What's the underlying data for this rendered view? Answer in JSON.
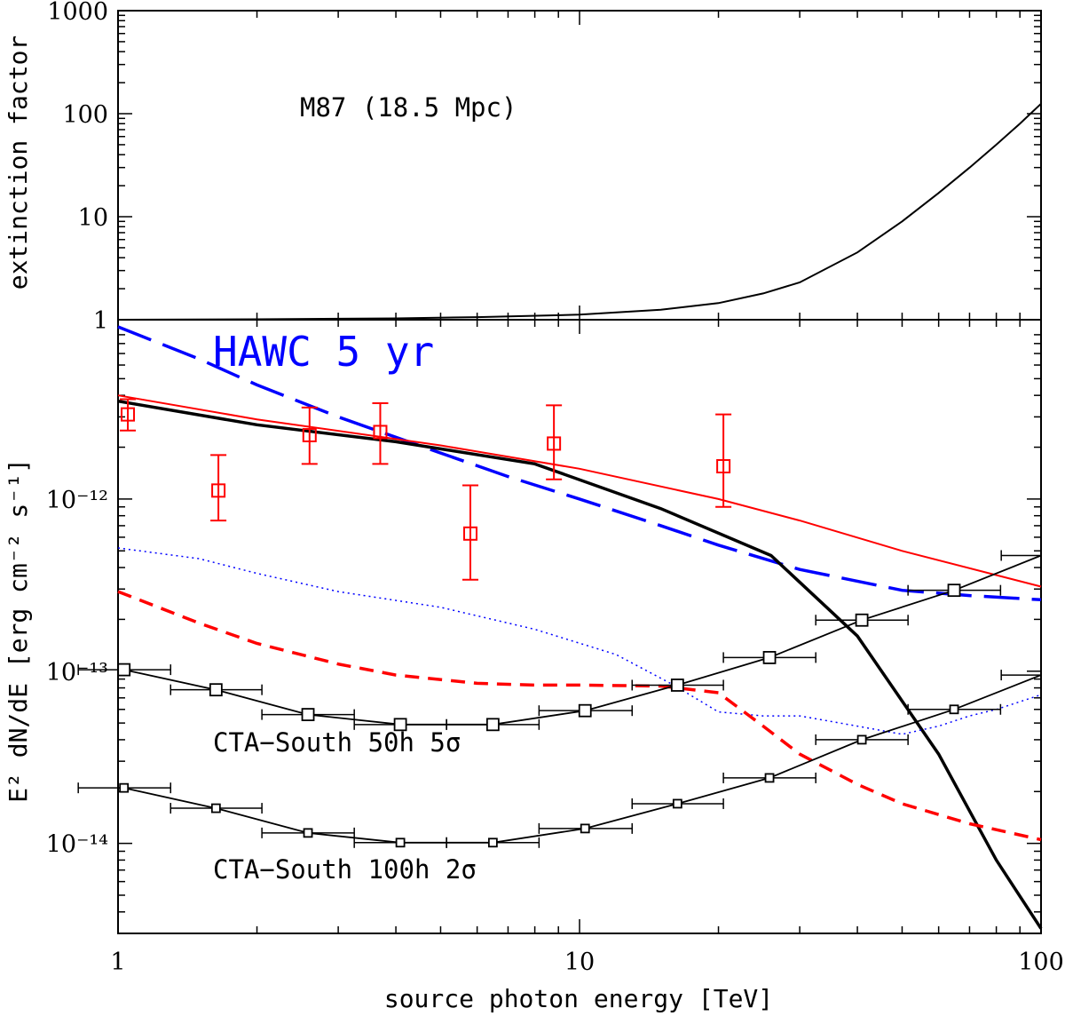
{
  "chart_data": [
    {
      "type": "line",
      "panel": "top",
      "ylabel": "extinction factor",
      "xlim": [
        1,
        100
      ],
      "ylim": [
        1,
        1000
      ],
      "yscale": "log",
      "xscale": "log",
      "yticks": [
        "1",
        "10",
        "100",
        "1000"
      ],
      "annotation": "M87 (18.5 Mpc)",
      "series": [
        {
          "name": "extinction",
          "color": "#000000",
          "x": [
            1,
            2,
            4,
            6,
            10,
            15,
            20,
            25,
            30,
            40,
            50,
            60,
            70,
            80,
            90,
            100
          ],
          "y": [
            1.0,
            1.01,
            1.03,
            1.06,
            1.12,
            1.25,
            1.45,
            1.8,
            2.3,
            4.5,
            9,
            17,
            30,
            50,
            80,
            125
          ]
        }
      ]
    },
    {
      "type": "line",
      "panel": "bottom",
      "xlabel": "source photon energy [TeV]",
      "ylabel": "E² dN/dE  [erg cm⁻² s⁻¹]",
      "xlim": [
        1,
        100
      ],
      "ylim": [
        3e-15,
        1.1e-11
      ],
      "xscale": "log",
      "yscale": "log",
      "xticks": [
        "1",
        "10",
        "100"
      ],
      "yticks": [
        "10⁻¹²",
        "10⁻¹³",
        "10⁻¹⁴"
      ],
      "annotations": [
        "HAWC 5 yr",
        "CTA−South 50h 5σ",
        "CTA−South 100h 2σ"
      ],
      "series": [
        {
          "name": "HAWC 5 yr sensitivity",
          "style": "long-dash",
          "color": "#0000ff",
          "x": [
            1,
            1.5,
            2,
            3,
            5,
            7,
            10,
            15,
            20,
            30,
            50,
            70,
            100
          ],
          "y": [
            1e-11,
            6.5e-12,
            4.6e-12,
            3e-12,
            1.85e-12,
            1.35e-12,
            1e-12,
            7e-13,
            5.4e-13,
            3.9e-13,
            2.95e-13,
            2.75e-13,
            2.6e-13
          ]
        },
        {
          "name": "red thin model",
          "style": "solid-thin",
          "color": "#ff0000",
          "x": [
            1,
            2,
            5,
            10,
            20,
            30,
            50,
            100
          ],
          "y": [
            4e-12,
            2.9e-12,
            2.05e-12,
            1.5e-12,
            1e-12,
            7.5e-13,
            5e-13,
            3.1e-13
          ]
        },
        {
          "name": "black thick model",
          "style": "solid-thick",
          "color": "#000000",
          "x": [
            1,
            2,
            4,
            8,
            15,
            26,
            40,
            60,
            80,
            100
          ],
          "y": [
            3.7e-12,
            2.7e-12,
            2.15e-12,
            1.6e-12,
            8.8e-13,
            4.7e-13,
            1.6e-13,
            3.3e-14,
            8e-15,
            3.2e-15
          ]
        },
        {
          "name": "blue dotted",
          "style": "dotted",
          "color": "#0000ff",
          "x": [
            1,
            1.5,
            2,
            3,
            5,
            8,
            12,
            16,
            20,
            25,
            30,
            40,
            50,
            60,
            70,
            80,
            100
          ],
          "y": [
            5.2e-13,
            4.5e-13,
            3.7e-13,
            2.9e-13,
            2.35e-13,
            1.75e-13,
            1.25e-13,
            8.3e-14,
            5.8e-14,
            5.5e-14,
            5.5e-14,
            4.8e-14,
            4.3e-14,
            4.8e-14,
            5.5e-14,
            6e-14,
            7.3e-14
          ]
        },
        {
          "name": "red dashed",
          "style": "short-dash",
          "color": "#ff0000",
          "x": [
            1,
            1.5,
            2,
            3,
            4,
            6,
            8,
            10,
            15,
            20,
            25,
            30,
            40,
            50,
            70,
            100
          ],
          "y": [
            2.9e-13,
            1.9e-13,
            1.45e-13,
            1.1e-13,
            9.5e-14,
            8.5e-14,
            8.3e-14,
            8.3e-14,
            8.2e-14,
            7.5e-14,
            4.8e-14,
            3.3e-14,
            2.2e-14,
            1.7e-14,
            1.3e-14,
            1.05e-14
          ]
        },
        {
          "name": "CTA-South 50h 5σ",
          "style": "solid-with-markers",
          "color": "#000000",
          "marker_size": "large",
          "x": [
            1.03,
            1.63,
            2.58,
            4.09,
            6.49,
            10.28,
            16.3,
            25.8,
            40.9,
            64.8,
            92
          ],
          "xerr_lo": [
            0.82,
            1.3,
            2.05,
            3.25,
            5.15,
            8.17,
            13.0,
            20.5,
            32.5,
            51.5,
            82
          ],
          "xerr_hi": [
            1.3,
            2.05,
            3.25,
            5.15,
            8.17,
            13.0,
            20.5,
            32.5,
            51.5,
            81.7,
            100
          ],
          "y": [
            1.02e-13,
            7.8e-14,
            5.6e-14,
            4.9e-14,
            4.9e-14,
            5.9e-14,
            8.3e-14,
            1.2e-13,
            1.98e-13,
            2.95e-13,
            4.7e-13
          ]
        },
        {
          "name": "CTA-South 100h 2σ",
          "style": "solid-with-markers",
          "color": "#000000",
          "marker_size": "small",
          "x": [
            1.03,
            1.63,
            2.58,
            4.09,
            6.49,
            10.28,
            16.3,
            25.8,
            40.9,
            64.8,
            92
          ],
          "xerr_lo": [
            0.82,
            1.3,
            2.05,
            3.25,
            5.15,
            8.17,
            13.0,
            20.5,
            32.5,
            51.5,
            82
          ],
          "xerr_hi": [
            1.3,
            2.05,
            3.25,
            5.15,
            8.17,
            13.0,
            20.5,
            32.5,
            51.5,
            81.7,
            100
          ],
          "y": [
            2.1e-14,
            1.6e-14,
            1.15e-14,
            1.01e-14,
            1.01e-14,
            1.22e-14,
            1.7e-14,
            2.4e-14,
            4e-14,
            6e-14,
            9.5e-14
          ]
        },
        {
          "name": "data points",
          "style": "markers-with-yerr",
          "color": "#ff0000",
          "x": [
            1.05,
            1.65,
            2.6,
            3.7,
            5.8,
            8.8,
            20.5
          ],
          "y": [
            3.1e-12,
            1.12e-12,
            2.35e-12,
            2.45e-12,
            6.3e-13,
            2.1e-12,
            1.55e-12
          ],
          "yerr_lo": [
            2.5e-12,
            7.5e-13,
            1.6e-12,
            1.6e-12,
            3.4e-13,
            1.3e-12,
            9e-13
          ],
          "yerr_hi": [
            3.8e-12,
            1.8e-12,
            3.4e-12,
            3.6e-12,
            1.2e-12,
            3.5e-12,
            3.1e-12
          ]
        }
      ]
    }
  ]
}
